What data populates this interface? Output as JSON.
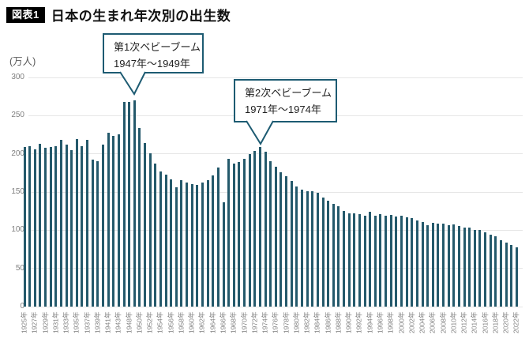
{
  "header": {
    "badge": "図表1",
    "title": "日本の生まれ年次別の出生数"
  },
  "colors": {
    "bar": "#24596b",
    "bubble_border": "#1d5b72",
    "grid": "#e6e6e6",
    "tick_text": "#7f7f7f",
    "badge_bg": "#000000",
    "badge_text": "#ffffff"
  },
  "chart_data": {
    "type": "bar",
    "title": "日本の生まれ年次別の出生数",
    "unit_label": "(万人)",
    "xlabel": "",
    "ylabel": "出生数(万人)",
    "ylim": [
      0,
      300
    ],
    "yticks": [
      0,
      50,
      100,
      150,
      200,
      250,
      300
    ],
    "grid": true,
    "x_tick_suffix": "年",
    "x_tick_years": [
      1925,
      1927,
      1929,
      1931,
      1933,
      1935,
      1937,
      1939,
      1941,
      1943,
      1948,
      1950,
      1952,
      1954,
      1956,
      1958,
      1960,
      1962,
      1964,
      1966,
      1968,
      1970,
      1972,
      1974,
      1976,
      1978,
      1980,
      1982,
      1984,
      1986,
      1988,
      1990,
      1992,
      1994,
      1996,
      1998,
      2000,
      2002,
      2004,
      2006,
      2008,
      2010,
      2012,
      2014,
      2016,
      2018,
      2020,
      2022
    ],
    "years": [
      1925,
      1926,
      1927,
      1928,
      1929,
      1930,
      1931,
      1932,
      1933,
      1934,
      1935,
      1936,
      1937,
      1938,
      1939,
      1940,
      1941,
      1942,
      1943,
      1947,
      1948,
      1949,
      1950,
      1951,
      1952,
      1953,
      1954,
      1955,
      1956,
      1957,
      1958,
      1959,
      1960,
      1961,
      1962,
      1963,
      1964,
      1965,
      1966,
      1967,
      1968,
      1969,
      1970,
      1971,
      1972,
      1973,
      1974,
      1975,
      1976,
      1977,
      1978,
      1979,
      1980,
      1981,
      1982,
      1983,
      1984,
      1985,
      1986,
      1987,
      1988,
      1989,
      1990,
      1991,
      1992,
      1993,
      1994,
      1995,
      1996,
      1997,
      1998,
      1999,
      2000,
      2001,
      2002,
      2003,
      2004,
      2005,
      2006,
      2007,
      2008,
      2009,
      2010,
      2011,
      2012,
      2013,
      2014,
      2015,
      2016,
      2017,
      2018,
      2019,
      2020,
      2021,
      2022
    ],
    "values": [
      208.6,
      210.4,
      206.1,
      213.6,
      207.7,
      208.5,
      210.3,
      218.3,
      212.1,
      204.4,
      219.1,
      210.2,
      218.1,
      192.8,
      190.2,
      211.6,
      227.7,
      223.4,
      225.4,
      267.9,
      268.2,
      269.7,
      233.8,
      213.8,
      200.5,
      186.8,
      177.0,
      173.1,
      166.5,
      156.7,
      165.3,
      162.6,
      160.6,
      158.9,
      161.9,
      165.9,
      171.7,
      182.4,
      136.1,
      193.6,
      187.2,
      189.0,
      193.4,
      200.1,
      203.9,
      209.2,
      203.0,
      190.1,
      183.3,
      175.5,
      170.9,
      164.3,
      157.7,
      152.9,
      151.5,
      150.9,
      149.0,
      143.2,
      138.3,
      134.7,
      131.4,
      124.7,
      122.2,
      122.3,
      120.9,
      118.8,
      123.8,
      118.7,
      120.7,
      119.2,
      120.3,
      117.8,
      119.1,
      117.1,
      115.4,
      112.4,
      111.1,
      106.3,
      109.3,
      109.0,
      109.1,
      107.0,
      107.1,
      105.1,
      103.7,
      103.0,
      100.4,
      100.6,
      97.7,
      94.6,
      91.8,
      86.5,
      84.1,
      81.2,
      77.1
    ],
    "annotations": [
      {
        "label": "第1次ベビーブーム",
        "range": "1947年〜1949年"
      },
      {
        "label": "第2次ベビーブーム",
        "range": "1971年〜1974年"
      }
    ]
  }
}
